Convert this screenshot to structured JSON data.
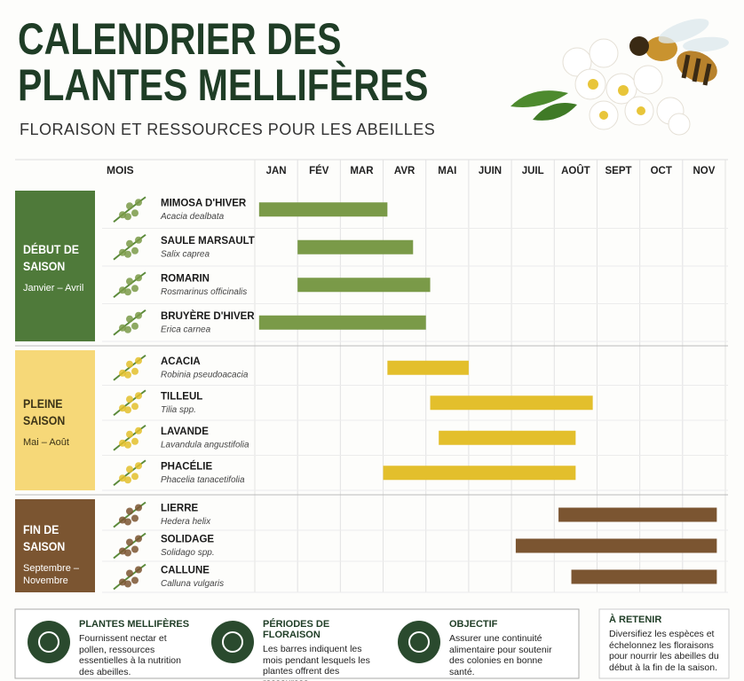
{
  "chart_data": {
    "type": "gantt",
    "title": "CALENDRIER DES PLANTES MELLIFÈRES",
    "subtitle": "FLORAISON ET RESSOURCES POUR LES ABEILLES",
    "axis_label": "MOIS",
    "categories": [
      "JAN",
      "FÉV",
      "MAR",
      "AVR",
      "MAI",
      "JUIN",
      "JUIL",
      "AOÛT",
      "SEPT",
      "OCT",
      "NOV"
    ],
    "xlim": [
      0,
      11
    ],
    "grid": true,
    "groups": [
      {
        "name": "DÉBUT DE SAISON",
        "period": "Janvier – Avril",
        "color": "#4f7a3a",
        "bar_color": "#7a9a48",
        "text_color": "#ffffff",
        "plants": [
          {
            "name": "MIMOSA D'HIVER",
            "latin": "Acacia dealbata",
            "start": 0.1,
            "end": 3.1
          },
          {
            "name": "SAULE MARSAULT",
            "latin": "Salix caprea",
            "start": 1.0,
            "end": 3.7
          },
          {
            "name": "ROMARIN",
            "latin": "Rosmarinus officinalis",
            "start": 1.0,
            "end": 4.1
          },
          {
            "name": "BRUYÈRE D'HIVER",
            "latin": "Erica carnea",
            "start": 0.1,
            "end": 4.0
          }
        ]
      },
      {
        "name": "PLEINE SAISON",
        "period": "Mai – Août",
        "color": "#f6d878",
        "bar_color": "#e3bf2c",
        "text_color": "#3d3418",
        "plants": [
          {
            "name": "ACACIA",
            "latin": "Robinia pseudoacacia",
            "start": 3.1,
            "end": 5.0
          },
          {
            "name": "TILLEUL",
            "latin": "Tilia spp.",
            "start": 4.1,
            "end": 7.9
          },
          {
            "name": "LAVANDE",
            "latin": "Lavandula angustifolia",
            "start": 4.3,
            "end": 7.5
          },
          {
            "name": "PHACÉLIE",
            "latin": "Phacelia tanacetifolia",
            "start": 3.0,
            "end": 7.5
          }
        ]
      },
      {
        "name": "FIN DE SAISON",
        "period": "Septembre – Novembre",
        "color": "#7b5531",
        "bar_color": "#7b5531",
        "text_color": "#ffffff",
        "plants": [
          {
            "name": "LIERRE",
            "latin": "Hedera helix",
            "start": 7.1,
            "end": 10.8
          },
          {
            "name": "SOLIDAGE",
            "latin": "Solidago spp.",
            "start": 6.1,
            "end": 10.8
          },
          {
            "name": "CALLUNE",
            "latin": "Calluna vulgaris",
            "start": 7.4,
            "end": 10.8
          }
        ]
      }
    ]
  },
  "footer": {
    "items": [
      {
        "title": "PLANTES MELLIFÈRES",
        "text": "Fournissent nectar et pollen, ressources essentielles à la nutrition des abeilles."
      },
      {
        "title": "PÉRIODES DE FLORAISON",
        "text": "Les barres indiquent les mois pendant lesquels les plantes offrent des ressources."
      },
      {
        "title": "OBJECTIF",
        "text": "Assurer une continuité alimentaire pour soutenir des colonies en bonne santé."
      }
    ],
    "note_title": "À RETENIR",
    "note_text": "Diversifiez les espèces et échelonnez les floraisons pour nourrir les abeilles du début à la fin de la saison."
  }
}
